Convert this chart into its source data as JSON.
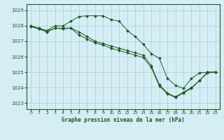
{
  "title": "Graphe pression niveau de la mer (hPa)",
  "background_color": "#d5eef5",
  "grid_color": "#a8ccd8",
  "line_color": "#1a5c1a",
  "marker_color": "#1a5c1a",
  "ylim": [
    1022.6,
    1029.4
  ],
  "xlim": [
    -0.5,
    23.5
  ],
  "yticks": [
    1023,
    1024,
    1025,
    1026,
    1027,
    1028,
    1029
  ],
  "xticks": [
    0,
    1,
    2,
    3,
    4,
    5,
    6,
    7,
    8,
    9,
    10,
    11,
    12,
    13,
    14,
    15,
    16,
    17,
    18,
    19,
    20,
    21,
    22,
    23
  ],
  "series1_x": [
    0,
    1,
    2,
    3,
    4,
    5,
    6,
    7,
    8,
    9,
    10,
    11,
    12,
    13,
    14,
    15,
    16,
    17,
    18,
    19,
    20,
    21,
    22,
    23
  ],
  "series1_y": [
    1028.0,
    1027.85,
    1027.7,
    1028.0,
    1028.0,
    1028.3,
    1028.6,
    1028.65,
    1028.65,
    1028.65,
    1028.4,
    1028.3,
    1027.7,
    1027.3,
    1026.8,
    1026.2,
    1025.9,
    1024.6,
    1024.15,
    1023.95,
    1024.6,
    1024.95,
    1025.0,
    1025.0
  ],
  "series2_x": [
    0,
    1,
    2,
    3,
    4,
    5,
    6,
    7,
    8,
    9,
    10,
    11,
    12,
    13,
    14,
    15,
    16,
    17,
    18,
    19,
    20,
    21,
    22,
    23
  ],
  "series2_y": [
    1027.95,
    1027.8,
    1027.65,
    1027.85,
    1027.85,
    1027.85,
    1027.6,
    1027.3,
    1027.0,
    1026.85,
    1026.7,
    1026.55,
    1026.4,
    1026.25,
    1026.1,
    1025.4,
    1024.2,
    1023.65,
    1023.4,
    1023.7,
    1024.0,
    1024.45,
    1025.0,
    1025.0
  ],
  "series3_x": [
    0,
    1,
    2,
    3,
    4,
    5,
    6,
    7,
    8,
    9,
    10,
    11,
    12,
    13,
    14,
    15,
    16,
    17,
    18,
    19,
    20,
    21,
    22,
    23
  ],
  "series3_y": [
    1028.0,
    1027.8,
    1027.6,
    1027.85,
    1027.8,
    1027.85,
    1027.4,
    1027.15,
    1026.9,
    1026.75,
    1026.55,
    1026.4,
    1026.25,
    1026.1,
    1025.95,
    1025.3,
    1024.1,
    1023.6,
    1023.35,
    1023.65,
    1023.95,
    1024.45,
    1024.95,
    1025.0
  ]
}
